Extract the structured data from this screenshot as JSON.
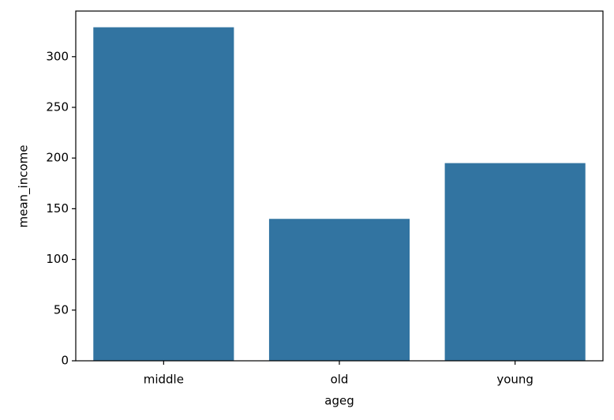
{
  "chart_data": {
    "type": "bar",
    "x_label": "ageg",
    "y_label": "mean_income",
    "categories": [
      "middle",
      "old",
      "young"
    ],
    "values": [
      329,
      140,
      195
    ],
    "color": "#3274a1",
    "ylim": [
      0,
      345
    ],
    "yticks": [
      0,
      50,
      100,
      150,
      200,
      250,
      300
    ],
    "grid": false
  }
}
